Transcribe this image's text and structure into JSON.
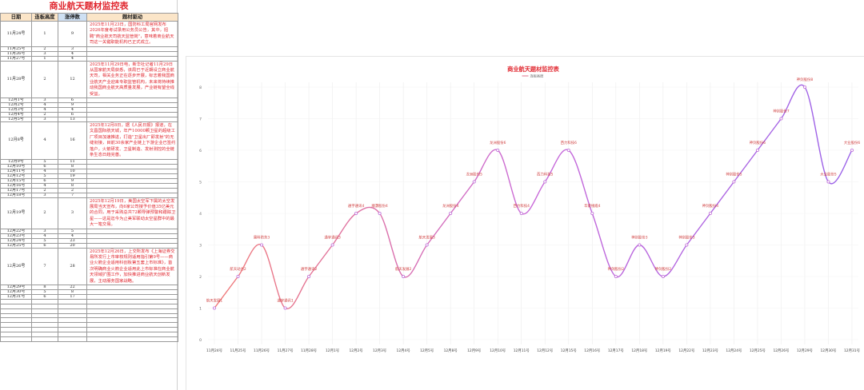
{
  "sheet": {
    "title": "商业航天题材监控表",
    "headers": {
      "date": "日期",
      "board": "连板高度",
      "zt": "涨停数",
      "driver": "题材驱动"
    },
    "rows": [
      {
        "date": "11月24号",
        "board": "1",
        "zt": "9",
        "news": "2025年11月23日，国防科工局官网发布2026年度考试录用公务员公告，其中，招聘\"商业航天司航天监管岗\"，意味着商业航天司这一关键职能机构已正式成立。",
        "tall": 4
      },
      {
        "date": "11月25号",
        "board": "2",
        "zt": "3"
      },
      {
        "date": "11月26号",
        "board": "3",
        "zt": "4"
      },
      {
        "date": "11月27号",
        "board": "1",
        "zt": "4"
      },
      {
        "date": "11月28号",
        "board": "2",
        "zt": "12",
        "news": "2025年11月29日电，新华社记者11月29日从国家航天局获悉，该局已于近期设立商业航天司，相关业务正在逐步开展，标志着我国商业航天产业迎来专职监管机构，未来将持续推动我国商业航天高质量发展，产业链有望全线受益。",
        "tall": 6
      },
      {
        "date": "12月1号",
        "board": "3",
        "zt": "6"
      },
      {
        "date": "12月2号",
        "board": "4",
        "zt": "9"
      },
      {
        "date": "12月3号",
        "board": "4",
        "zt": "4"
      },
      {
        "date": "12月4号",
        "board": "2",
        "zt": "6"
      },
      {
        "date": "12月5号",
        "board": "3",
        "zt": "13"
      },
      {
        "date": "12月8号",
        "board": "4",
        "zt": "16",
        "news": "2025年12月8日，据《人民日报》报道，在文昌国际航天城，年产10000颗卫星的超级工厂项目加速推进，打造\"卫星出厂即发射\"的无缝衔接，目前30余家产业链上下游企业已签约落户，火箭研发、卫星制造、发射测控的全链条生态日趋完善。",
        "tall": 6
      },
      {
        "date": "12月9号",
        "board": "5",
        "zt": "11"
      },
      {
        "date": "12月10号",
        "board": "6",
        "zt": "8"
      },
      {
        "date": "12月11号",
        "board": "4",
        "zt": "10"
      },
      {
        "date": "12月12号",
        "board": "5",
        "zt": "19"
      },
      {
        "date": "12月15号",
        "board": "6",
        "zt": "9"
      },
      {
        "date": "12月16号",
        "board": "4",
        "zt": "8"
      },
      {
        "date": "12月17号",
        "board": "2",
        "zt": "2"
      },
      {
        "date": "12月18号",
        "board": "3",
        "zt": "7"
      },
      {
        "date": "12月19号",
        "board": "2",
        "zt": "3",
        "news": "2025年12月19日，美国太空军下属的太空发展局当天宣布，向6家公司授予价值35亿美元的合同，用于采购总共72颗导弹预警和跟踪卫星——这是迄今为止美军联动太空星群中的最大一笔交易。",
        "tall": 5
      },
      {
        "date": "12月22号",
        "board": "3",
        "zt": "5"
      },
      {
        "date": "12月23号",
        "board": "4",
        "zt": "4"
      },
      {
        "date": "12月24号",
        "board": "5",
        "zt": "23"
      },
      {
        "date": "12月25号",
        "board": "6",
        "zt": "20"
      },
      {
        "date": "12月26号",
        "board": "7",
        "zt": "28",
        "news": "2025年12月26日，上交所发布《上海证券交易所发行上市审核规则适用指引第9号——商业火箭企业适用科创板第五套上市标准》，首次明确商业火箭企业适用此上市标准在商业航天领域扩围工作，加快推进商业航天创新发展，主动服务国家战略。",
        "tall": 6
      },
      {
        "date": "12月29号",
        "board": "8",
        "zt": "22"
      },
      {
        "date": "12月30号",
        "board": "5",
        "zt": "8"
      },
      {
        "date": "12月31号",
        "board": "6",
        "zt": "17"
      }
    ]
  },
  "chart": {
    "title": "商业航天题材监控表",
    "legend": "连板高度",
    "line_color": "#e58aa0",
    "chart_data": {
      "type": "line",
      "title": "商业航天题材监控表",
      "categories": [
        "11月24号",
        "11月25号",
        "11月26号",
        "11月27号",
        "11月28号",
        "12月1号",
        "12月2号",
        "12月3号",
        "12月4号",
        "12月5号",
        "12月8号",
        "12月9号",
        "12月10号",
        "12月11号",
        "12月12号",
        "12月15号",
        "12月16号",
        "12月17号",
        "12月18号",
        "12月19号",
        "12月22号",
        "12月23号",
        "12月24号",
        "12月25号",
        "12月26号",
        "12月29号",
        "12月30号",
        "12月31号"
      ],
      "series": [
        {
          "name": "连板高度",
          "values": [
            1,
            2,
            3,
            1,
            2,
            3,
            4,
            4,
            2,
            3,
            4,
            5,
            6,
            4,
            5,
            6,
            4,
            2,
            3,
            2,
            3,
            4,
            5,
            6,
            7,
            8,
            5,
            6
          ]
        }
      ],
      "ylim": [
        0,
        8
      ],
      "yticks": [
        "0",
        "1",
        "2",
        "3",
        "4",
        "5",
        "6",
        "7",
        "8"
      ],
      "point_labels": [
        "航天发展1",
        "航天动力2",
        "雷科防务3",
        "通宇通讯1",
        "通宇通讯2",
        "通宇通讯3",
        "通宇通讯4",
        "顺灏股份4",
        "航天发展2",
        "航天发展3",
        "龙洲股份4",
        "龙洲股份5",
        "龙洲股份6",
        "西力科技4",
        "西力科技5",
        "西力科技6",
        "华菱线缆4",
        "神剑股份2",
        "神剑股份3",
        "神剑股份2",
        "神剑股份3",
        "神剑股份4",
        "神剑股份5",
        "神剑股份6",
        "神剑股份7",
        "神剑股份8",
        "大业股份5",
        "大业股份6"
      ]
    }
  }
}
